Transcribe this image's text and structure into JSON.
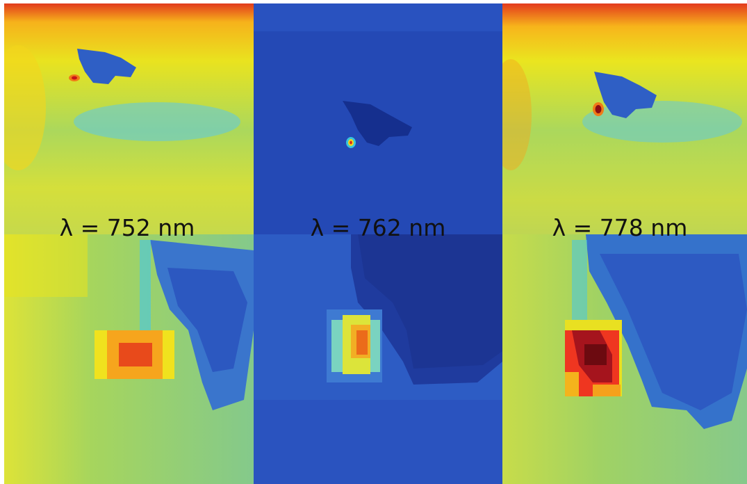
{
  "panels": [
    {
      "label": "λ = 752 nm",
      "background_color": "#b9dc4a",
      "hotspot_color": "#e8401c",
      "particle_color": "#2e58c9"
    },
    {
      "label": "λ = 762 nm",
      "background_color": "#2348b4",
      "hotspot_color": "#e9a52a",
      "particle_color": "#152c8a"
    },
    {
      "label": "λ = 778 nm",
      "background_color": "#b9dc4a",
      "hotspot_color": "#8b0e12",
      "particle_color": "#2e58c9"
    }
  ]
}
